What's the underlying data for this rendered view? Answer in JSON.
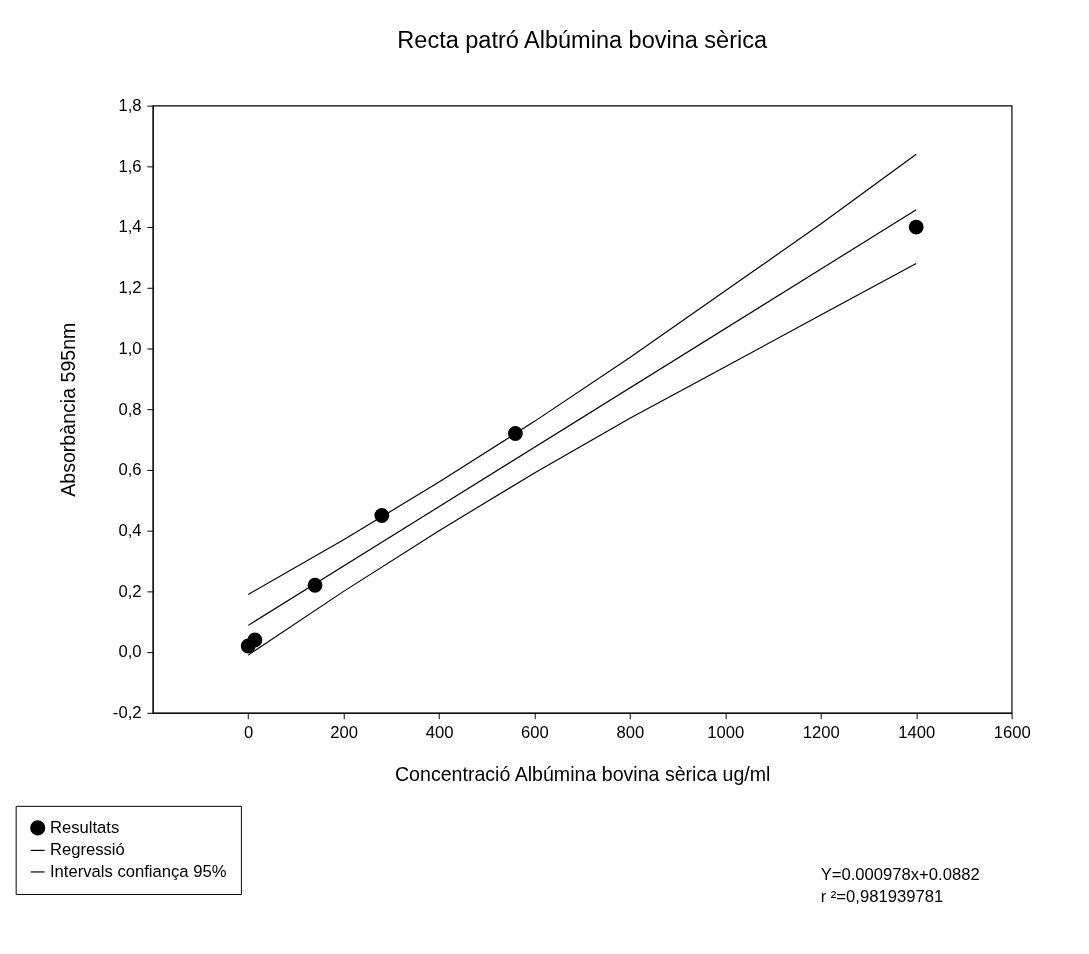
{
  "chart_data": {
    "type": "scatter",
    "title": "Recta patró Albúmina bovina sèrica",
    "xlabel": "Concentració Albúmina bovina sèrica ug/ml",
    "ylabel": "Absorbància 595nm",
    "xlim": [
      -200,
      1600
    ],
    "xticks": [
      0,
      200,
      400,
      600,
      800,
      1000,
      1200,
      1400,
      1600
    ],
    "ylim": [
      -0.2,
      1.8
    ],
    "yticks": [
      {
        "value": -0.2,
        "label": "-0,2"
      },
      {
        "value": 0,
        "label": "0,0"
      },
      {
        "value": 0.2,
        "label": "0,2"
      },
      {
        "value": 0.4,
        "label": "0,4"
      },
      {
        "value": 0.6,
        "label": "0,6"
      },
      {
        "value": 0.8,
        "label": "0,8"
      },
      {
        "value": 1.0,
        "label": "1,0"
      },
      {
        "value": 1.2,
        "label": "1,2"
      },
      {
        "value": 1.4,
        "label": "1,4"
      },
      {
        "value": 1.6,
        "label": "1,6"
      },
      {
        "value": 1.8,
        "label": "1,8"
      }
    ],
    "grid": false,
    "legend": "bottom left",
    "series": [
      {
        "name": "Resultats",
        "marker": "circle",
        "color": "#000000",
        "x": [
          0,
          14,
          140,
          280,
          560,
          1400
        ],
        "values": [
          0.02,
          0.04,
          0.22,
          0.45,
          0.72,
          1.4
        ]
      },
      {
        "name": "Regressió",
        "type": "line",
        "marker": "none",
        "color": "#000000",
        "x": [
          0,
          1400
        ],
        "values": [
          0.088,
          1.457
        ]
      },
      {
        "name": "Intervals confiança 95%",
        "type": "line",
        "marker": "none",
        "color": "#000000",
        "x": [
          0,
          200,
          400,
          600,
          800,
          1000,
          1200,
          1400
        ],
        "values": [
          0.19,
          0.37,
          0.56,
          0.76,
          0.97,
          1.19,
          1.41,
          1.64
        ]
      },
      {
        "type": "line",
        "marker": "none",
        "color": "#000000",
        "x": [
          0,
          200,
          400,
          600,
          800,
          1000,
          1200,
          1400
        ],
        "values": [
          -0.01,
          0.2,
          0.4,
          0.59,
          0.77,
          0.94,
          1.11,
          1.28
        ]
      }
    ],
    "annotations": [
      "Y=0.000978x+0.0882",
      "r ²=0,981939781"
    ]
  }
}
